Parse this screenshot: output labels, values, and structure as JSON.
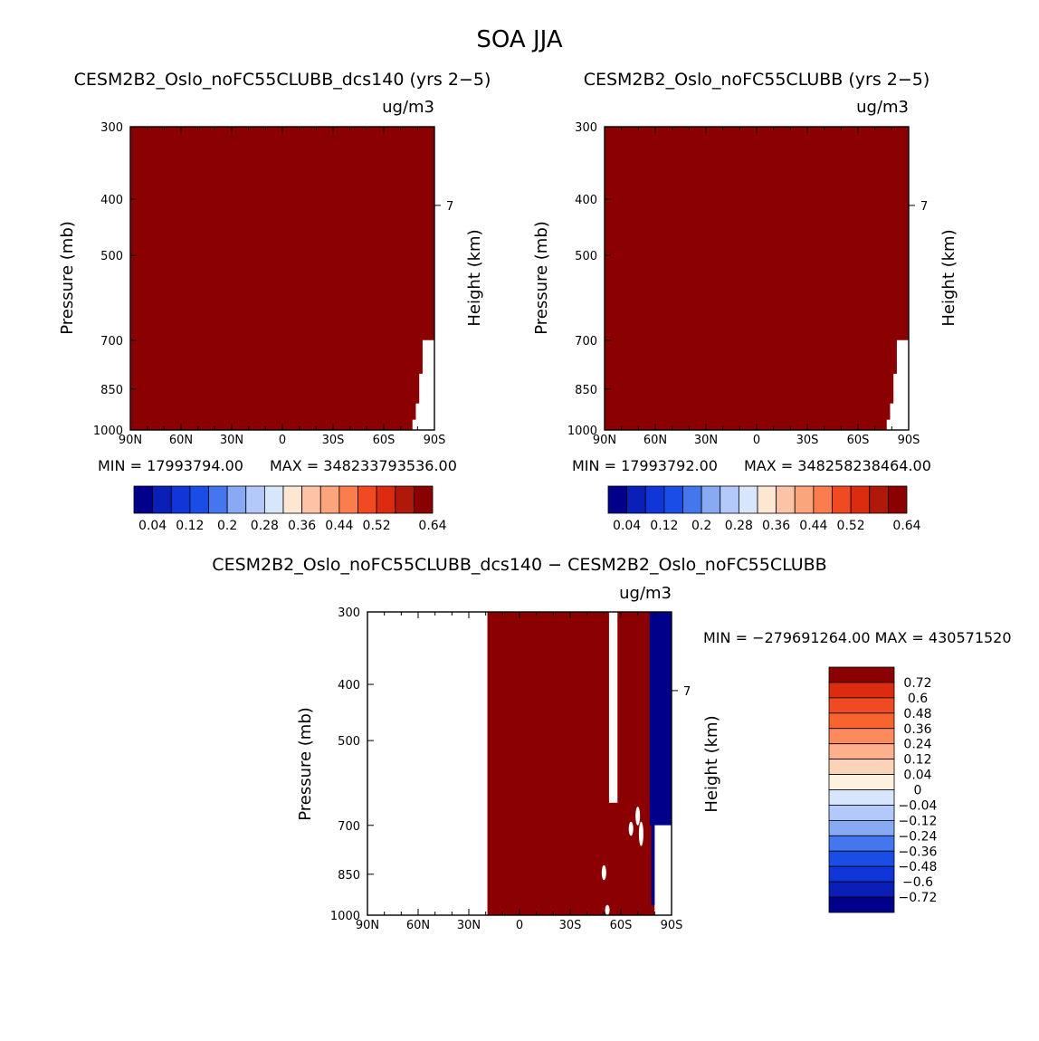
{
  "figure_title": "SOA JJA",
  "colors": {
    "field": "#8b0000",
    "background": "#ffffff",
    "diff_positive": "#8b0000",
    "diff_negative": "#00008b",
    "abs_levels": [
      "#00008b",
      "#0a1fb8",
      "#1035d9",
      "#1a4de6",
      "#4477ee",
      "#88aaf5",
      "#b3c9fa",
      "#d8e6fb",
      "#fde6d2",
      "#fcc3a6",
      "#fca47c",
      "#fb7c4c",
      "#f04a22",
      "#dc2c10",
      "#b0180a",
      "#8b0000"
    ],
    "diff_levels": [
      "#00008b",
      "#0a1fb8",
      "#1035d9",
      "#1a4de6",
      "#4477ee",
      "#88aaf5",
      "#b3c9fa",
      "#d8e6fb",
      "#fff1e0",
      "#fdd3b8",
      "#fcb08c",
      "#fc8a5c",
      "#f8642e",
      "#f04a22",
      "#dc2c10",
      "#8b0000"
    ]
  },
  "chart_data": [
    {
      "type": "heatmap",
      "title": "CESM2B2_Oslo_noFC55CLUBB_dcs140 (yrs 2−5)",
      "units": "ug/m3",
      "xlabel": "",
      "ylabel": "Pressure (mb)",
      "ylabel_right": "Height (km)",
      "x_ticks": [
        "90N",
        "60N",
        "30N",
        "0",
        "30S",
        "60S",
        "90S"
      ],
      "x_range": [
        90,
        -90
      ],
      "y_ticks": [
        "300",
        "400",
        "500",
        "700",
        "850",
        "1000"
      ],
      "y_range": [
        300,
        1000
      ],
      "y_right_ticks": [
        "7"
      ],
      "height_tick_pressure": 410,
      "min_label": "MIN = 17993794.00",
      "max_label": "MAX = 348233793536.00",
      "colorbar_labels": [
        "0.04",
        "0.12",
        "0.2",
        "0.28",
        "0.36",
        "0.44",
        "0.52",
        "0.64"
      ],
      "missing_region": [
        {
          "lat_from": -83,
          "lat_to": -90,
          "p_from": 700,
          "p_to": 1000
        },
        {
          "lat_from": -81,
          "lat_to": -90,
          "p_from": 800,
          "p_to": 1000
        },
        {
          "lat_from": -79,
          "lat_to": -90,
          "p_from": 900,
          "p_to": 1000
        },
        {
          "lat_from": -77,
          "lat_to": -90,
          "p_from": 960,
          "p_to": 1000
        }
      ]
    },
    {
      "type": "heatmap",
      "title": "CESM2B2_Oslo_noFC55CLUBB (yrs 2−5)",
      "units": "ug/m3",
      "xlabel": "",
      "ylabel": "Pressure (mb)",
      "ylabel_right": "Height (km)",
      "x_ticks": [
        "90N",
        "60N",
        "30N",
        "0",
        "30S",
        "60S",
        "90S"
      ],
      "x_range": [
        90,
        -90
      ],
      "y_ticks": [
        "300",
        "400",
        "500",
        "700",
        "850",
        "1000"
      ],
      "y_range": [
        300,
        1000
      ],
      "y_right_ticks": [
        "7"
      ],
      "height_tick_pressure": 410,
      "min_label": "MIN = 17993792.00",
      "max_label": "MAX = 348258238464.00",
      "colorbar_labels": [
        "0.04",
        "0.12",
        "0.2",
        "0.28",
        "0.36",
        "0.44",
        "0.52",
        "0.64"
      ],
      "missing_region": [
        {
          "lat_from": -83,
          "lat_to": -90,
          "p_from": 700,
          "p_to": 1000
        },
        {
          "lat_from": -81,
          "lat_to": -90,
          "p_from": 800,
          "p_to": 1000
        },
        {
          "lat_from": -79,
          "lat_to": -90,
          "p_from": 900,
          "p_to": 1000
        },
        {
          "lat_from": -77,
          "lat_to": -90,
          "p_from": 960,
          "p_to": 1000
        }
      ]
    },
    {
      "type": "heatmap",
      "title": "CESM2B2_Oslo_noFC55CLUBB_dcs140 − CESM2B2_Oslo_noFC55CLUBB",
      "units": "ug/m3",
      "xlabel": "",
      "ylabel": "Pressure (mb)",
      "ylabel_right": "Height (km)",
      "x_ticks": [
        "90N",
        "60N",
        "30N",
        "0",
        "30S",
        "60S",
        "90S"
      ],
      "x_range": [
        90,
        -90
      ],
      "y_ticks": [
        "300",
        "400",
        "500",
        "700",
        "850",
        "1000"
      ],
      "y_range": [
        300,
        1000
      ],
      "y_right_ticks": [
        "7"
      ],
      "height_tick_pressure": 410,
      "min_max_label": "MIN = −279691264.00   MAX = 430571520",
      "colorbar_labels": [
        "0.72",
        "0.6",
        "0.48",
        "0.36",
        "0.24",
        "0.12",
        "0.04",
        "0",
        "−0.04",
        "−0.12",
        "−0.24",
        "−0.36",
        "−0.48",
        "−0.6",
        "−0.72"
      ],
      "regions": [
        {
          "sign": "positive",
          "lat_from": 19,
          "lat_to": -80,
          "p_from": 300,
          "p_to": 1000
        },
        {
          "sign": "missing",
          "lat_from": -53,
          "lat_to": -58,
          "p_from": 300,
          "p_to": 640
        },
        {
          "sign": "negative",
          "lat_from": -77,
          "lat_to": -90,
          "p_from": 300,
          "p_to": 700
        },
        {
          "sign": "missing",
          "lat_from": -80,
          "lat_to": -90,
          "p_from": 700,
          "p_to": 1000
        }
      ]
    }
  ]
}
